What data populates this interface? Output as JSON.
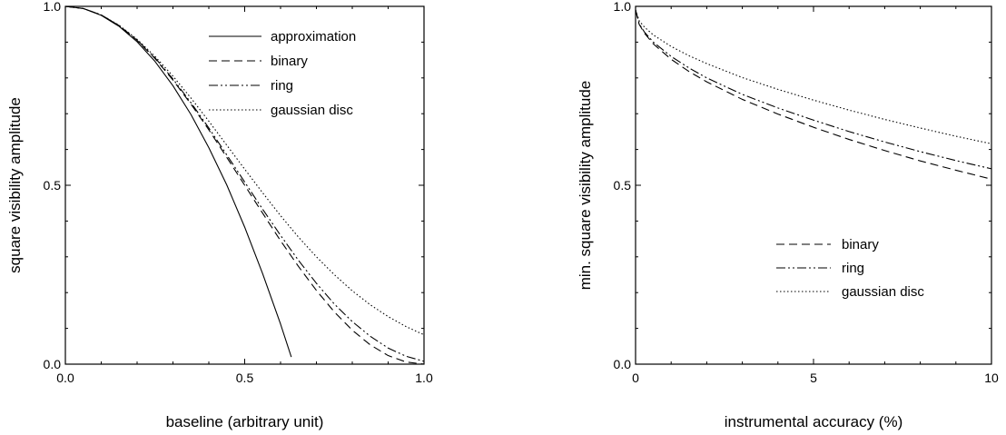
{
  "chart_data": [
    {
      "type": "line",
      "xlabel": "baseline (arbitrary unit)",
      "ylabel": "square visibility amplitude",
      "xlim": [
        0,
        1
      ],
      "ylim": [
        0,
        1
      ],
      "xticks": [
        "0.0",
        "0.5",
        "1.0"
      ],
      "yticks": [
        "0.0",
        "0.5",
        "1.0"
      ],
      "grid": false,
      "legend_position": "top-right",
      "series": [
        {
          "name": "approximation",
          "style": "solid",
          "x": [
            0,
            0.05,
            0.1,
            0.15,
            0.2,
            0.25,
            0.3,
            0.35,
            0.4,
            0.45,
            0.5,
            0.55,
            0.6,
            0.63
          ],
          "y": [
            1.0,
            0.994,
            0.975,
            0.944,
            0.901,
            0.846,
            0.778,
            0.698,
            0.605,
            0.501,
            0.383,
            0.253,
            0.112,
            0.02
          ]
        },
        {
          "name": "binary",
          "style": "dashed",
          "x": [
            0,
            0.05,
            0.1,
            0.15,
            0.2,
            0.25,
            0.3,
            0.35,
            0.4,
            0.45,
            0.5,
            0.55,
            0.6,
            0.65,
            0.7,
            0.75,
            0.8,
            0.85,
            0.9,
            0.95,
            1.0
          ],
          "y": [
            1.0,
            0.994,
            0.976,
            0.946,
            0.905,
            0.854,
            0.794,
            0.727,
            0.655,
            0.578,
            0.5,
            0.422,
            0.345,
            0.273,
            0.206,
            0.146,
            0.095,
            0.054,
            0.024,
            0.006,
            0.0
          ]
        },
        {
          "name": "ring",
          "style": "dash-dot",
          "x": [
            0,
            0.05,
            0.1,
            0.15,
            0.2,
            0.25,
            0.3,
            0.35,
            0.4,
            0.45,
            0.5,
            0.55,
            0.6,
            0.65,
            0.7,
            0.75,
            0.8,
            0.85,
            0.9,
            0.95,
            1.0
          ],
          "y": [
            1.0,
            0.994,
            0.976,
            0.946,
            0.906,
            0.856,
            0.797,
            0.731,
            0.66,
            0.585,
            0.509,
            0.433,
            0.36,
            0.29,
            0.226,
            0.168,
            0.119,
            0.078,
            0.045,
            0.022,
            0.008
          ]
        },
        {
          "name": "gaussian disc",
          "style": "dotted",
          "x": [
            0,
            0.05,
            0.1,
            0.15,
            0.2,
            0.25,
            0.3,
            0.35,
            0.4,
            0.45,
            0.5,
            0.55,
            0.6,
            0.65,
            0.7,
            0.75,
            0.8,
            0.85,
            0.9,
            0.95,
            1.0
          ],
          "y": [
            1.0,
            0.994,
            0.976,
            0.947,
            0.908,
            0.86,
            0.805,
            0.744,
            0.679,
            0.612,
            0.545,
            0.479,
            0.415,
            0.355,
            0.3,
            0.25,
            0.205,
            0.166,
            0.133,
            0.105,
            0.082
          ]
        }
      ]
    },
    {
      "type": "line",
      "xlabel": "instrumental accuracy (%)",
      "ylabel": "min. square visibility amplitude",
      "xlim": [
        0,
        10
      ],
      "ylim": [
        0,
        1
      ],
      "xticks": [
        "0",
        "5",
        "10"
      ],
      "yticks": [
        "0.0",
        "0.5",
        "1.0"
      ],
      "grid": false,
      "legend_position": "bottom-right",
      "series": [
        {
          "name": "binary",
          "style": "dashed",
          "x": [
            0,
            0.1,
            0.25,
            0.5,
            1,
            1.5,
            2,
            3,
            4,
            5,
            6,
            7,
            8,
            9,
            10
          ],
          "y": [
            0.99,
            0.95,
            0.925,
            0.895,
            0.852,
            0.818,
            0.789,
            0.74,
            0.699,
            0.662,
            0.628,
            0.597,
            0.568,
            0.542,
            0.517
          ]
        },
        {
          "name": "ring",
          "style": "dash-dot",
          "x": [
            0,
            0.1,
            0.25,
            0.5,
            1,
            1.5,
            2,
            3,
            4,
            5,
            6,
            7,
            8,
            9,
            10
          ],
          "y": [
            0.99,
            0.952,
            0.928,
            0.9,
            0.86,
            0.828,
            0.8,
            0.754,
            0.716,
            0.682,
            0.65,
            0.621,
            0.594,
            0.569,
            0.546
          ]
        },
        {
          "name": "gaussian disc",
          "style": "dotted",
          "x": [
            0,
            0.1,
            0.25,
            0.5,
            1,
            1.5,
            2,
            3,
            4,
            5,
            6,
            7,
            8,
            9,
            10
          ],
          "y": [
            0.99,
            0.96,
            0.942,
            0.92,
            0.888,
            0.862,
            0.84,
            0.801,
            0.768,
            0.738,
            0.71,
            0.684,
            0.66,
            0.637,
            0.616
          ]
        }
      ]
    }
  ]
}
